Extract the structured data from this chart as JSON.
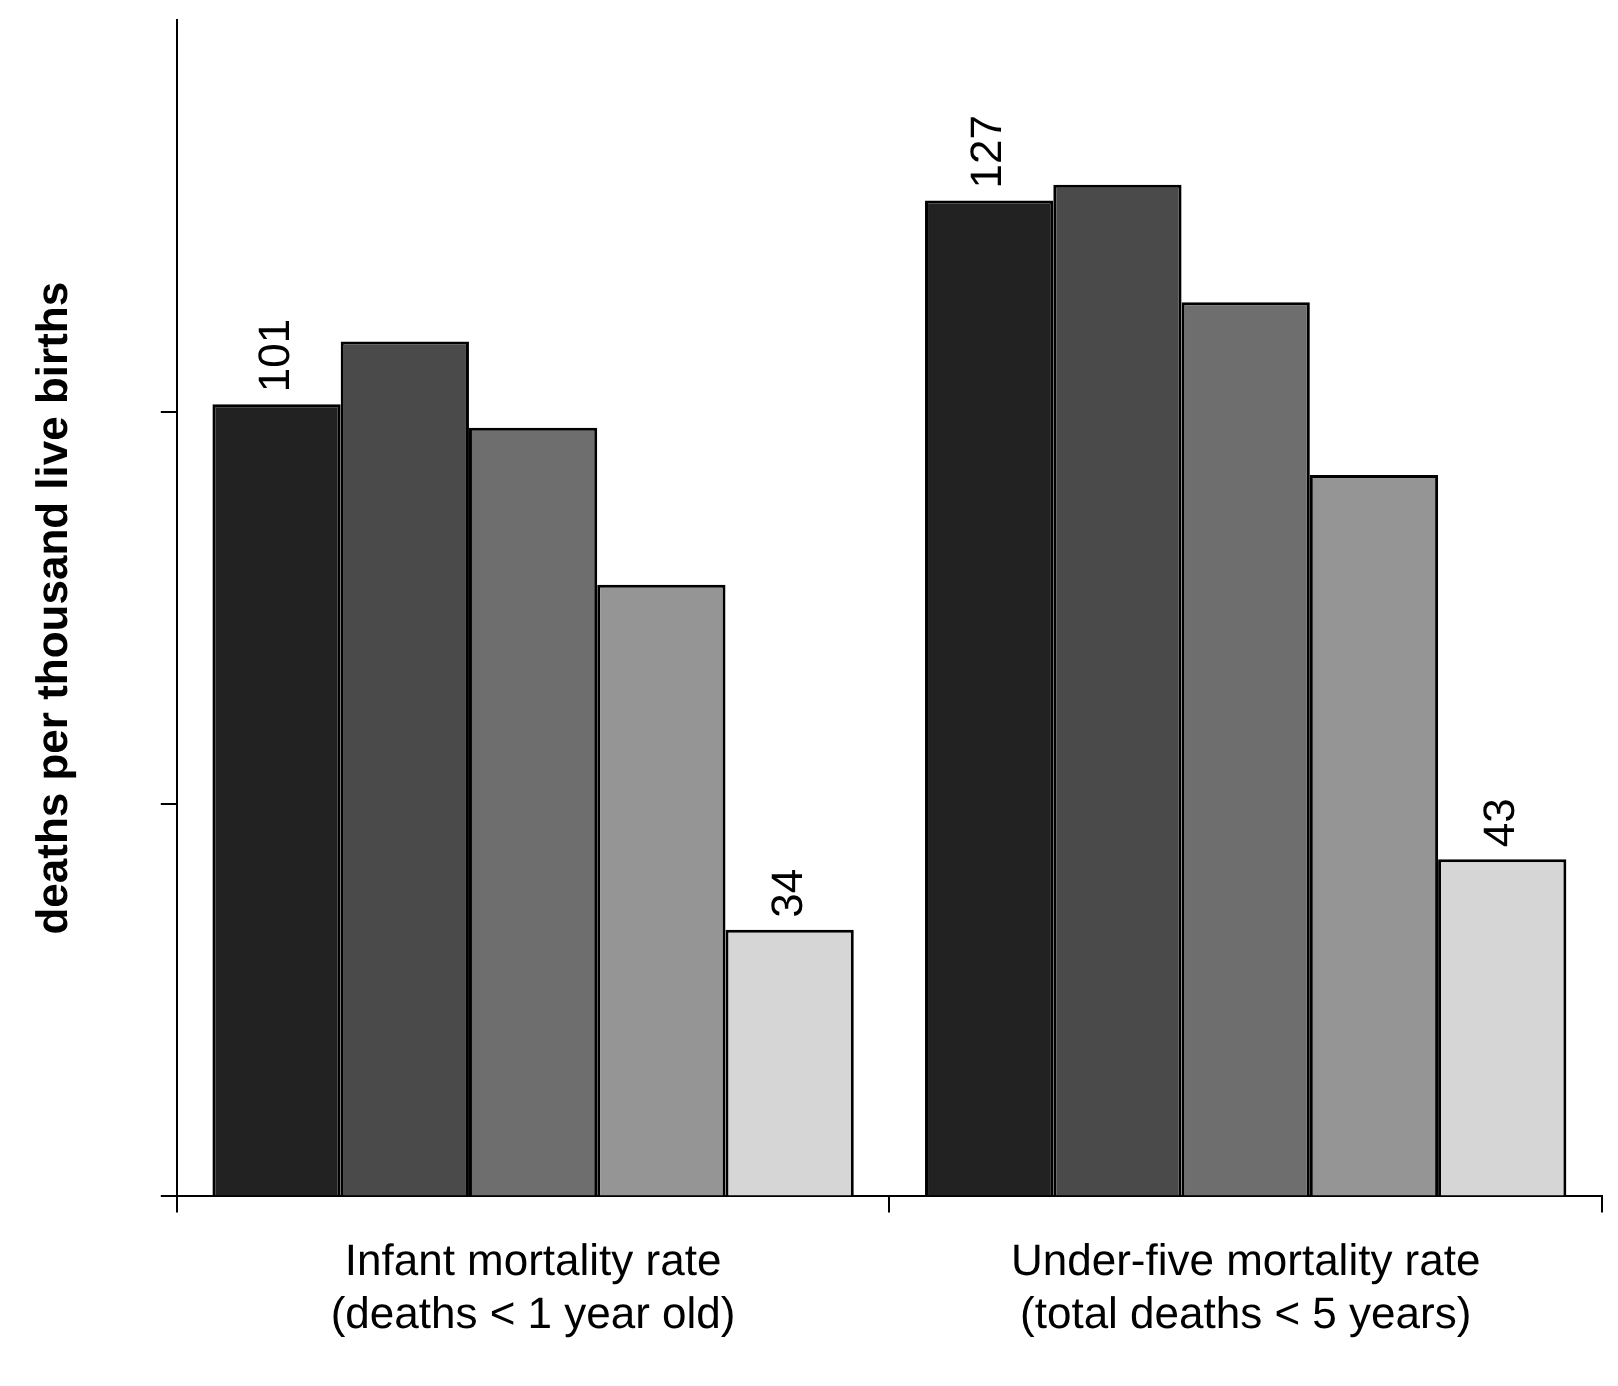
{
  "chart_data": {
    "type": "bar",
    "ylabel": "deaths per thousand live births",
    "categories": [
      "Infant mortality rate\n(deaths < 1 year old)",
      "Under-five mortality rate\n(total deaths < 5 years)"
    ],
    "series": [
      {
        "color": "#222222",
        "values": [
          101,
          127
        ],
        "value_labels": [
          "101",
          "127"
        ]
      },
      {
        "color": "#4a4a4a",
        "values": [
          109,
          129
        ],
        "value_labels": [
          null,
          null
        ]
      },
      {
        "color": "#6e6e6e",
        "values": [
          98,
          114
        ],
        "value_labels": [
          null,
          null
        ]
      },
      {
        "color": "#959595",
        "values": [
          78,
          92
        ],
        "value_labels": [
          null,
          null
        ]
      },
      {
        "color": "#d6d6d6",
        "values": [
          34,
          43
        ],
        "value_labels": [
          "34",
          "43"
        ]
      }
    ],
    "ylim": [
      0,
      150
    ],
    "yticks": [
      {
        "value": 0,
        "label": null
      },
      {
        "value": 50,
        "label": null
      },
      {
        "value": 100,
        "label": null
      }
    ],
    "grid": false,
    "legend": false,
    "tick_labels": "x"
  }
}
